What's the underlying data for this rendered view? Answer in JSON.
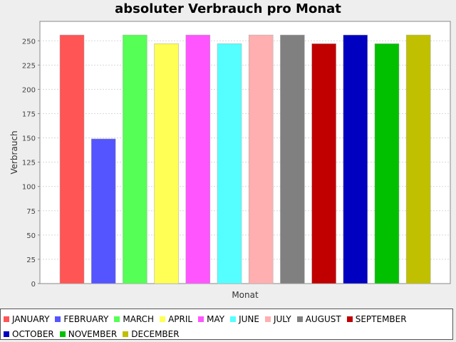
{
  "chart_data": {
    "type": "bar",
    "title": "absoluter Verbrauch pro Monat",
    "xlabel": "Monat",
    "ylabel": "Verbrauch",
    "ylim": [
      0,
      270
    ],
    "yticks": [
      0,
      25,
      50,
      75,
      100,
      125,
      150,
      175,
      200,
      225,
      250
    ],
    "grid": true,
    "legend_position": "bottom",
    "series": [
      {
        "name": "JANUARY",
        "value": 256,
        "color": "#ff5555"
      },
      {
        "name": "FEBRUARY",
        "value": 149,
        "color": "#5555ff"
      },
      {
        "name": "MARCH",
        "value": 256,
        "color": "#55ff55"
      },
      {
        "name": "APRIL",
        "value": 247,
        "color": "#ffff55"
      },
      {
        "name": "MAY",
        "value": 256,
        "color": "#ff55ff"
      },
      {
        "name": "JUNE",
        "value": 247,
        "color": "#55ffff"
      },
      {
        "name": "JULY",
        "value": 256,
        "color": "#ffafaf"
      },
      {
        "name": "AUGUST",
        "value": 256,
        "color": "#808080"
      },
      {
        "name": "SEPTEMBER",
        "value": 247,
        "color": "#c00000"
      },
      {
        "name": "OCTOBER",
        "value": 256,
        "color": "#0000c0"
      },
      {
        "name": "NOVEMBER",
        "value": 247,
        "color": "#00c000"
      },
      {
        "name": "DECEMBER",
        "value": 256,
        "color": "#c0c000"
      }
    ]
  }
}
